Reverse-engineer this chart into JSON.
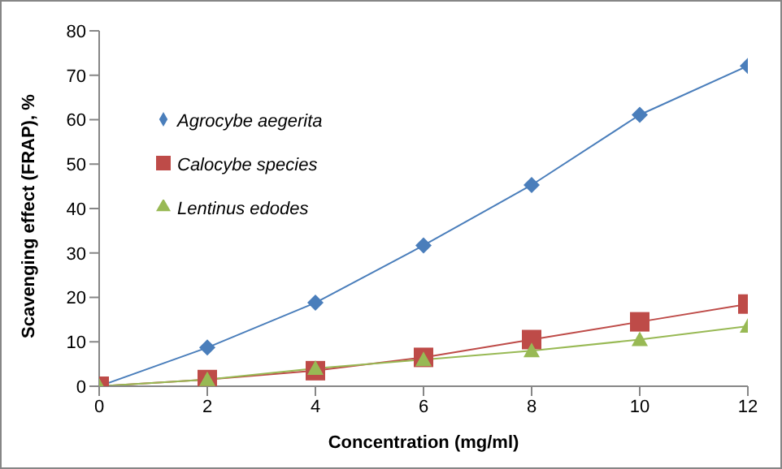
{
  "chart_data": {
    "type": "line",
    "xlabel": "Concentration (mg/ml)",
    "ylabel": "Scavenging effect (FRAP), %",
    "x": [
      0,
      2,
      4,
      6,
      8,
      10,
      12
    ],
    "xlim": [
      0,
      12
    ],
    "xticks": [
      0,
      2,
      4,
      6,
      8,
      10,
      12
    ],
    "ylim": [
      0,
      80
    ],
    "yticks": [
      0,
      10,
      20,
      30,
      40,
      50,
      60,
      70,
      80
    ],
    "grid": false,
    "legend": "top left",
    "series": [
      {
        "name": "Agrocybe aegerita",
        "color": "#4a7ebb",
        "marker": "diamond",
        "values": [
          0,
          8.7,
          18.8,
          31.7,
          45.3,
          61.1,
          72.1
        ]
      },
      {
        "name": "Calocybe species",
        "color": "#be4b48",
        "marker": "square",
        "values": [
          0,
          1.5,
          3.5,
          6.5,
          10.5,
          14.5,
          18.5
        ]
      },
      {
        "name": "Lentinus edodes",
        "color": "#98b954",
        "marker": "triangle",
        "values": [
          0,
          1.5,
          4,
          6,
          8,
          10.5,
          13.5
        ]
      }
    ]
  }
}
